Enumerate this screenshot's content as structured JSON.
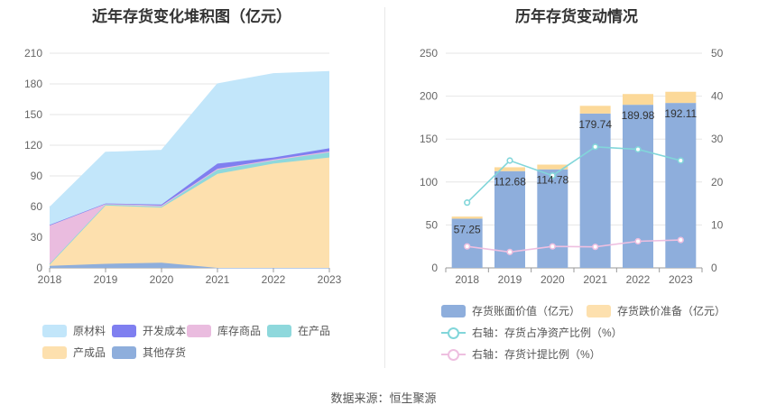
{
  "left_title": "近年存货变化堆积图（亿元）",
  "right_title": "历年存货变动情况",
  "source": "数据来源：恒生聚源",
  "chart_data": [
    {
      "type": "area",
      "stacked": true,
      "title": "近年存货变化堆积图（亿元）",
      "x": [
        "2018",
        "2019",
        "2020",
        "2021",
        "2022",
        "2023"
      ],
      "ylim": [
        0,
        210
      ],
      "yticks": [
        0,
        30,
        60,
        90,
        120,
        150,
        180,
        210
      ],
      "grid": true,
      "legend_position": "bottom",
      "series": [
        {
          "name": "其他存货",
          "color": "#8eaedc",
          "values": [
            2,
            4,
            5,
            0,
            0,
            0
          ]
        },
        {
          "name": "产成品",
          "color": "#fde0ae",
          "values": [
            1,
            57,
            54,
            92,
            102,
            108
          ]
        },
        {
          "name": "在产品",
          "color": "#8ed8dc",
          "values": [
            1,
            1,
            1,
            4,
            3,
            5
          ]
        },
        {
          "name": "库存商品",
          "color": "#eabcdf",
          "values": [
            38,
            1,
            1,
            1,
            1,
            1
          ]
        },
        {
          "name": "开发成本",
          "color": "#7f7ff0",
          "values": [
            0,
            0,
            1,
            5,
            2,
            3
          ]
        },
        {
          "name": "原材料",
          "color": "#c2e6fa",
          "values": [
            17,
            50,
            53,
            78,
            82,
            75
          ]
        }
      ],
      "legend_order": [
        "原材料",
        "开发成本",
        "库存商品",
        "在产品",
        "产成品",
        "其他存货"
      ]
    },
    {
      "type": "bar",
      "stacked": true,
      "title": "历年存货变动情况",
      "categories": [
        "2018",
        "2019",
        "2020",
        "2021",
        "2022",
        "2023"
      ],
      "ylim": [
        0,
        250
      ],
      "yticks": [
        0,
        50,
        100,
        150,
        200,
        250
      ],
      "y2lim": [
        0,
        50
      ],
      "y2ticks": [
        0,
        10,
        20,
        30,
        40,
        50
      ],
      "grid": true,
      "legend_position": "bottom",
      "series": [
        {
          "name": "存货账面价值（亿元）",
          "color": "#8eaedc",
          "axis": "left",
          "values": [
            57.25,
            112.68,
            114.78,
            179.74,
            189.98,
            192.11
          ],
          "labels": [
            "57.25",
            "112.68",
            "114.78",
            "179.74",
            "189.98",
            "192.11"
          ]
        },
        {
          "name": "存货跌价准备（亿元）",
          "color": "#fcd999",
          "axis": "left",
          "values": [
            2.5,
            4.5,
            5.5,
            9,
            12.5,
            13
          ]
        },
        {
          "name": "右轴：存货占净资产比例（%）",
          "color": "#82d6da",
          "axis": "right",
          "line": true,
          "values": [
            15.2,
            25,
            21.5,
            28.2,
            27.6,
            25
          ]
        },
        {
          "name": "右轴：存货计提比例（%）",
          "color": "#eebfe0",
          "axis": "right",
          "line": true,
          "values": [
            5,
            3.7,
            5,
            4.9,
            6.2,
            6.5
          ]
        }
      ]
    }
  ]
}
